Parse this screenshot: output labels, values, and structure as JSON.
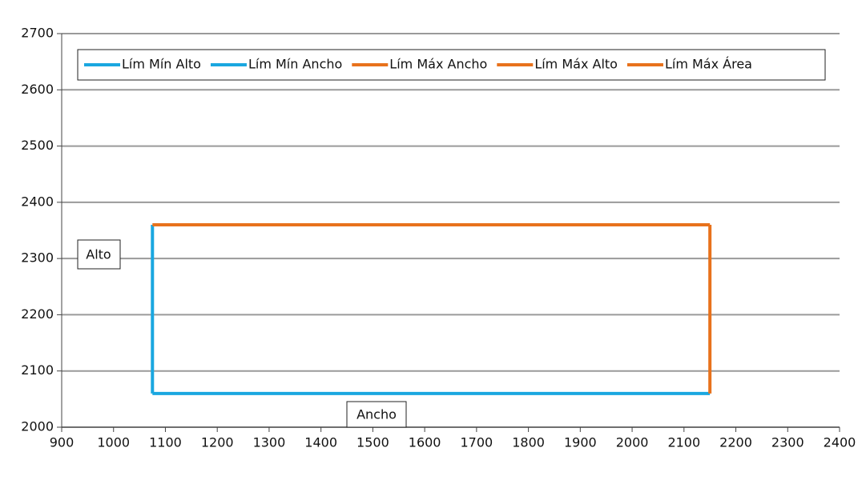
{
  "chart_data": {
    "type": "line",
    "x_label": "Ancho",
    "y_label": "Alto",
    "xlim": [
      900,
      2400
    ],
    "xticks": [
      900,
      1000,
      1100,
      1200,
      1300,
      1400,
      1500,
      1600,
      1700,
      1800,
      1900,
      2000,
      2100,
      2200,
      2300,
      2400
    ],
    "ylim": [
      2000,
      2700
    ],
    "yticks": [
      2000,
      2100,
      2200,
      2300,
      2400,
      2500,
      2600,
      2700
    ],
    "grid": true,
    "legend": "top",
    "series": [
      {
        "name": "Lím Mín Alto",
        "color": "#1aa7e0",
        "x": [
          1075,
          2150
        ],
        "values": [
          2060,
          2060
        ]
      },
      {
        "name": "Lím Mín Ancho",
        "color": "#1aa7e0",
        "x": [
          1075,
          1075
        ],
        "values": [
          2060,
          2360
        ]
      },
      {
        "name": "Lím Máx Ancho",
        "color": "#e8721c",
        "x": [
          2150,
          2150
        ],
        "values": [
          2060,
          2360
        ]
      },
      {
        "name": "Lím Máx Alto",
        "color": "#e8721c",
        "x": [
          1075,
          2150
        ],
        "values": [
          2360,
          2360
        ]
      },
      {
        "name": "Lím Máx Área",
        "color": "#e8721c",
        "x": [],
        "values": []
      }
    ]
  }
}
